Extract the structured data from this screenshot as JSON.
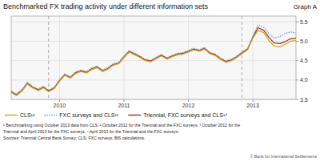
{
  "chart_data": {
    "type": "line",
    "title": "Benchmarked FX trading activity under different information sets",
    "annotations": [
      "Graph A",
      "¹ Benchmarking using October 2013 data from CLS.  ² October 2012 for the Triennial and the FXC surveys.  ³ October 2012 for the",
      "Triennial and April 2013 for the FXC surveys.  ⁴ April 2013 for the Triennial and the FXC surveys.",
      "Sources: Triennial Central Bank Survey; CLS; FXC surveys; BIS calculations.",
      "© Bank for International Settlements"
    ],
    "x": [
      2009.25,
      2009.33,
      2009.42,
      2009.5,
      2009.58,
      2009.67,
      2009.75,
      2009.83,
      2009.92,
      2010,
      2010.08,
      2010.17,
      2010.25,
      2010.33,
      2010.42,
      2010.5,
      2010.58,
      2010.67,
      2010.75,
      2010.83,
      2010.92,
      2011,
      2011.08,
      2011.17,
      2011.25,
      2011.33,
      2011.42,
      2011.5,
      2011.58,
      2011.67,
      2011.75,
      2011.83,
      2011.92,
      2012,
      2012.08,
      2012.17,
      2012.25,
      2012.33,
      2012.42,
      2012.5,
      2012.58,
      2012.67,
      2012.75,
      2012.83,
      2012.92,
      2013,
      2013.08,
      2013.17,
      2013.25,
      2013.33,
      2013.42,
      2013.5,
      2013.58,
      2013.67
    ],
    "series": [
      {
        "name": "CLS¹²",
        "color": "#d4a017",
        "line_style": "solid",
        "values": [
          3.68,
          3.6,
          3.72,
          3.9,
          3.8,
          3.73,
          3.8,
          3.7,
          3.78,
          3.97,
          4.12,
          4.05,
          4.17,
          4.22,
          4.18,
          4.27,
          4.32,
          4.22,
          4.28,
          4.38,
          4.42,
          4.58,
          4.72,
          4.65,
          4.58,
          4.5,
          4.47,
          4.55,
          4.62,
          4.54,
          4.6,
          4.65,
          4.67,
          4.72,
          4.78,
          4.74,
          4.8,
          4.68,
          4.63,
          4.53,
          4.46,
          4.5,
          4.58,
          4.68,
          4.78,
          5.08,
          5.28,
          5.22,
          5.02,
          4.88,
          4.85,
          4.92,
          5.0,
          5.02
        ]
      },
      {
        "name": "FXC surveys and CLS¹³",
        "color": "#7090c8",
        "line_style": "dotted",
        "values": [
          3.72,
          3.64,
          3.76,
          3.94,
          3.84,
          3.77,
          3.84,
          3.74,
          3.82,
          4.01,
          4.16,
          4.09,
          4.21,
          4.26,
          4.22,
          4.31,
          4.36,
          4.26,
          4.32,
          4.42,
          4.46,
          4.62,
          4.76,
          4.69,
          4.62,
          4.54,
          4.51,
          4.59,
          4.66,
          4.58,
          4.64,
          4.69,
          4.71,
          4.76,
          4.82,
          4.78,
          4.84,
          4.72,
          4.67,
          4.57,
          4.5,
          4.54,
          4.62,
          4.72,
          4.82,
          5.13,
          5.42,
          5.36,
          5.2,
          5.08,
          5.12,
          5.2,
          5.24,
          5.22
        ]
      },
      {
        "name": "Triennial, FXC surveys and CLS¹⁴",
        "color": "#a03020",
        "line_style": "solid",
        "values": [
          3.7,
          3.62,
          3.74,
          3.92,
          3.82,
          3.75,
          3.82,
          3.72,
          3.8,
          3.99,
          4.14,
          4.07,
          4.19,
          4.24,
          4.2,
          4.29,
          4.34,
          4.24,
          4.3,
          4.4,
          4.44,
          4.6,
          4.74,
          4.67,
          4.6,
          4.52,
          4.49,
          4.57,
          4.64,
          4.56,
          4.62,
          4.67,
          4.69,
          4.74,
          4.8,
          4.76,
          4.82,
          4.7,
          4.65,
          4.55,
          4.48,
          4.52,
          4.6,
          4.7,
          4.8,
          5.1,
          5.35,
          5.28,
          5.1,
          4.96,
          4.94,
          4.99,
          5.06,
          5.08
        ]
      }
    ],
    "vlines": [
      2009.83,
      2012.83
    ],
    "xlim": [
      2009.25,
      2013.67
    ],
    "xticks": [
      2010,
      2011,
      2012,
      2013
    ],
    "ylim": [
      3.5,
      5.65
    ],
    "yticks": [
      3.5,
      {
        "value": 4.0,
        "label": "4.0"
      },
      4.5,
      {
        "value": 5.0,
        "label": "5.0"
      },
      5.5
    ],
    "grid": true,
    "legend": "bottom"
  }
}
